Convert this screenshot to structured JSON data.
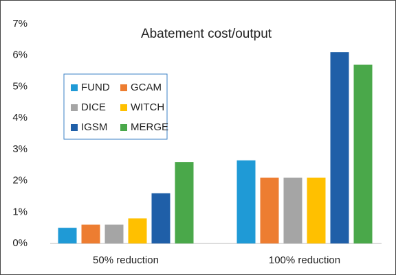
{
  "chart_data": {
    "type": "bar",
    "title": "Abatement cost/output",
    "categories": [
      "50% reduction",
      "100% reduction"
    ],
    "series": [
      {
        "name": "FUND",
        "color": "#1f9ad6",
        "values": [
          0.5,
          2.65
        ]
      },
      {
        "name": "GCAM",
        "color": "#ed7d31",
        "values": [
          0.6,
          2.1
        ]
      },
      {
        "name": "DICE",
        "color": "#a5a5a5",
        "values": [
          0.6,
          2.1
        ]
      },
      {
        "name": "WITCH",
        "color": "#ffc000",
        "values": [
          0.8,
          2.1
        ]
      },
      {
        "name": "IGSM",
        "color": "#1f5fa8",
        "values": [
          1.6,
          6.1
        ]
      },
      {
        "name": "MERGE",
        "color": "#4aa84a",
        "values": [
          2.6,
          5.7
        ]
      }
    ],
    "ylim": [
      0,
      7
    ],
    "yticks": [
      {
        "value": 0,
        "label": "0%"
      },
      {
        "value": 1,
        "label": "1%"
      },
      {
        "value": 2,
        "label": "2%"
      },
      {
        "value": 3,
        "label": "3%"
      },
      {
        "value": 4,
        "label": "4%"
      },
      {
        "value": 5,
        "label": "5%"
      },
      {
        "value": 6,
        "label": "6%"
      },
      {
        "value": 7,
        "label": "7%"
      }
    ],
    "grid": false,
    "legend": "upper left"
  }
}
